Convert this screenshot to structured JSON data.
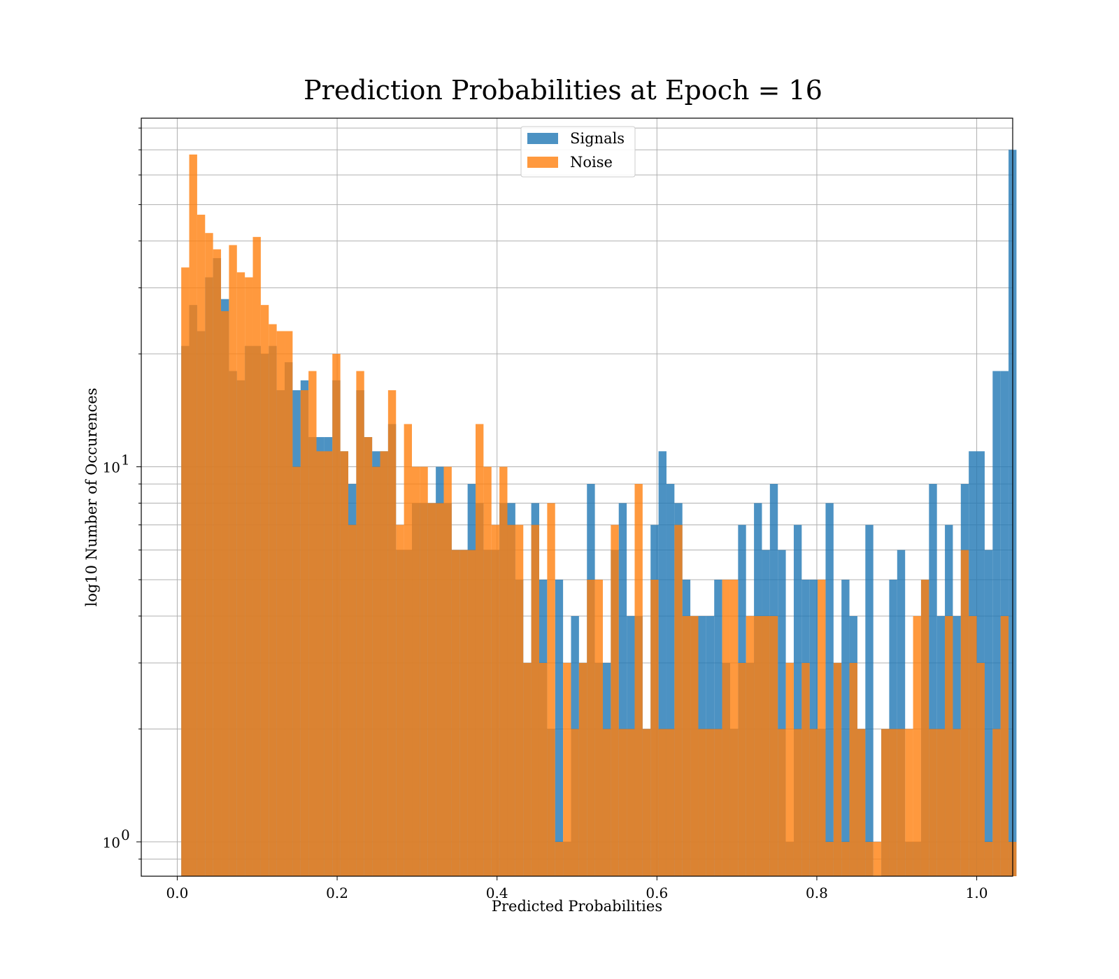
{
  "chart_data": {
    "type": "bar",
    "title": "Prediction Probabilities at Epoch = 16",
    "xlabel": "Predicted Probabilities",
    "ylabel": "log10 Number of Occurences",
    "xlim": [
      -0.045,
      1.045
    ],
    "ylim": [
      0.81,
      85
    ],
    "yscale": "log",
    "grid": true,
    "legend_position": "top-center",
    "x_ticks": [
      {
        "value": 0.0,
        "label": "0.0"
      },
      {
        "value": 0.2,
        "label": "0.2"
      },
      {
        "value": 0.4,
        "label": "0.4"
      },
      {
        "value": 0.6,
        "label": "0.6"
      },
      {
        "value": 0.8,
        "label": "0.8"
      },
      {
        "value": 1.0,
        "label": "1.0"
      }
    ],
    "y_major_ticks": [
      {
        "value": 1,
        "base": "10",
        "exponent": "0"
      },
      {
        "value": 10,
        "base": "10",
        "exponent": "1"
      }
    ],
    "y_minor_ticks": [
      0.9,
      2,
      3,
      4,
      5,
      6,
      7,
      8,
      9,
      20,
      30,
      40,
      50,
      60,
      70,
      80
    ],
    "series": [
      {
        "name": "Signals",
        "color": "#1f77b4",
        "opacity": 0.8,
        "bin_start": 0.005,
        "bin_width": 0.00995,
        "values": [
          21,
          27,
          23,
          32,
          36,
          28,
          18,
          17,
          21,
          21,
          20,
          21,
          16,
          19,
          16,
          17,
          12,
          12,
          12,
          17,
          11,
          9,
          16,
          12,
          11,
          11,
          13,
          6,
          6,
          8,
          8,
          8,
          10,
          8,
          6,
          6,
          9,
          8,
          6,
          6,
          8,
          8,
          5,
          3,
          8,
          5,
          2,
          5,
          1,
          4,
          3,
          9,
          3,
          3,
          6,
          8,
          4,
          4,
          2,
          7,
          11,
          9,
          8,
          5,
          4,
          4,
          4,
          5,
          3,
          2,
          7,
          3,
          8,
          6,
          9,
          6,
          1,
          7,
          5,
          5,
          2,
          8,
          3,
          5,
          4,
          2,
          7,
          0.8,
          2,
          5,
          6,
          1,
          1,
          5,
          9,
          4,
          7,
          4,
          9,
          11,
          11,
          6,
          18,
          18,
          70
        ]
      },
      {
        "name": "Noise",
        "color": "#ff7f0e",
        "opacity": 0.8,
        "bin_start": 0.005,
        "bin_width": 0.00995,
        "values": [
          34,
          68,
          47,
          42,
          38,
          26,
          39,
          33,
          32,
          41,
          27,
          24,
          23,
          23,
          10,
          16,
          18,
          11,
          11,
          20,
          11,
          7,
          18,
          12,
          10,
          11,
          16,
          7,
          13,
          10,
          10,
          8,
          8,
          10,
          6,
          6,
          6,
          13,
          10,
          7,
          10,
          7,
          7,
          3,
          7,
          3,
          8,
          1,
          3,
          2,
          3,
          5,
          5,
          2,
          7,
          2,
          2,
          9,
          2,
          5,
          2,
          2,
          7,
          4,
          4,
          2,
          2,
          2,
          5,
          5,
          3,
          4,
          4,
          4,
          4,
          2,
          3,
          2,
          3,
          2,
          5,
          1,
          3,
          1,
          3,
          2,
          1,
          1,
          2,
          2,
          2,
          2,
          4,
          5,
          2,
          2,
          4,
          2,
          6,
          4,
          3,
          1,
          2,
          4,
          1
        ]
      }
    ]
  }
}
